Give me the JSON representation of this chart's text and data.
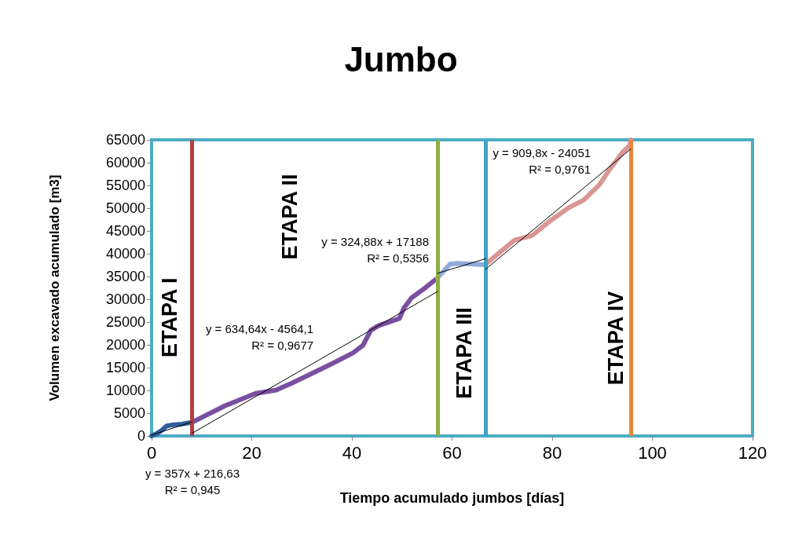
{
  "chart_data": {
    "type": "line",
    "title": "Jumbo",
    "xlabel": "Tiempo acumulado jumbos [días]",
    "ylabel": "Volumen excavado acumulado [m3]",
    "xlim": [
      0,
      120
    ],
    "xticks": [
      0,
      20,
      40,
      60,
      80,
      100,
      120
    ],
    "ylim": [
      0,
      65000
    ],
    "yticks": [
      0,
      5000,
      10000,
      15000,
      20000,
      25000,
      30000,
      35000,
      40000,
      45000,
      50000,
      55000,
      60000,
      65000
    ],
    "grid": false,
    "legend": false,
    "marker": "none",
    "line_style": "solid",
    "series": [
      {
        "color": "#2f5f9a",
        "x": [
          0,
          1,
          2,
          3,
          4,
          5,
          6,
          7,
          8.1
        ],
        "values": [
          0,
          500,
          1200,
          2200,
          2400,
          2500,
          2600,
          2800,
          3000
        ]
      },
      {
        "color": "#7a4fa0",
        "x": [
          8.1,
          14.6,
          20.7,
          24.9,
          28,
          32,
          36.1,
          40.2,
          42.2,
          43.8,
          45.3,
          49.5,
          50.4,
          51.9,
          54.5,
          57.1
        ],
        "values": [
          3000,
          6600,
          9300,
          10100,
          11600,
          13700,
          15900,
          18200,
          19900,
          23200,
          24200,
          25800,
          28100,
          30300,
          32400,
          34700
        ]
      },
      {
        "color": "#8faadc",
        "x": [
          57.1,
          59.6,
          61,
          66.7
        ],
        "values": [
          34700,
          37700,
          37900,
          37600
        ]
      },
      {
        "color": "#d99694",
        "x": [
          66.7,
          72.5,
          76,
          79.1,
          83.3,
          86.3,
          89.4,
          91.4,
          94,
          95.5,
          95.7
        ],
        "values": [
          37700,
          43000,
          44000,
          46800,
          50100,
          51800,
          55100,
          58400,
          62200,
          63800,
          65000
        ]
      },
      {
        "name": "y = 357x + 216,63\nR² = 0,945",
        "color": "#000000",
        "x": [
          0,
          8.1
        ],
        "values": [
          200,
          3100
        ]
      },
      {
        "name": "y = 634,64x - 4564,1\nR² = 0,9677",
        "color": "#000000",
        "x": [
          8.1,
          57.1
        ],
        "values": [
          600,
          31700
        ]
      },
      {
        "name": "y = 324,88x + 17188\nR² = 0,5356",
        "color": "#000000",
        "x": [
          57.1,
          66.7
        ],
        "values": [
          35700,
          38900
        ]
      },
      {
        "name": "y = 909,8x - 24051\nR² = 0,9761",
        "color": "#000000",
        "x": [
          66.7,
          95.7
        ],
        "values": [
          36600,
          63000
        ]
      }
    ],
    "ref_lines": [
      {
        "axis": "x",
        "value": 8.1,
        "color": "#b0413e"
      },
      {
        "axis": "x",
        "value": 57.1,
        "color": "#8fae44"
      },
      {
        "axis": "x",
        "value": 66.7,
        "color": "#3fa4c4"
      },
      {
        "axis": "x",
        "value": 95.7,
        "color": "#e8883a"
      }
    ],
    "annotations": [
      "ETAPA I",
      "ETAPA II",
      "ETAPA III",
      "ETAPA IV"
    ]
  }
}
